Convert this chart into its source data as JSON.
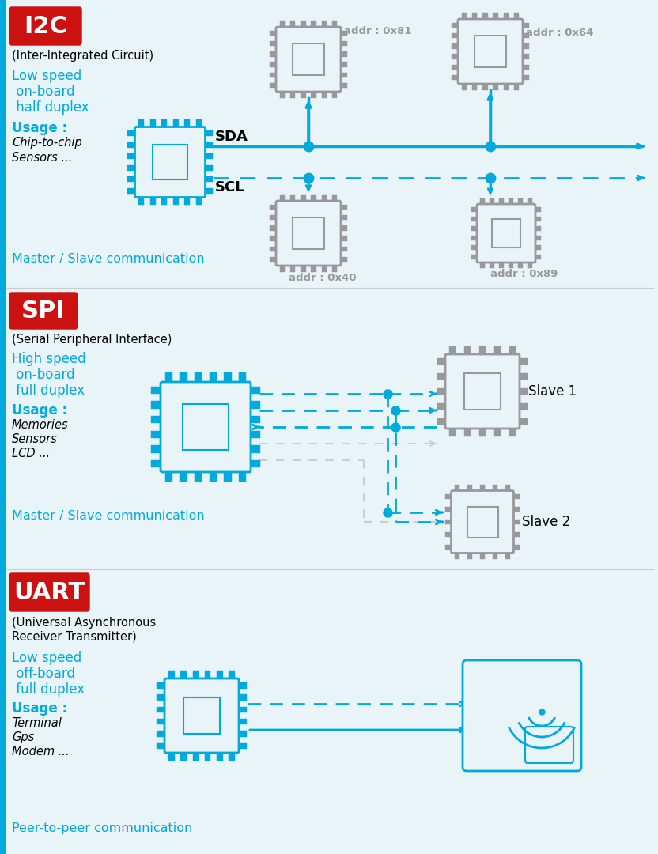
{
  "bg_color": "#e8f4f8",
  "cyan": "#00aadd",
  "red_bg": "#cc1111",
  "white": "#ffffff",
  "black": "#000000",
  "gray": "#999999",
  "dark_gray": "#555555",
  "light_gray": "#cccccc",
  "title_i2c": "I2C",
  "title_spi": "SPI",
  "title_uart": "UART",
  "i2c_desc": "(Inter-Integrated Circuit)",
  "i2c_line1": "Low speed",
  "i2c_line2": " on-board",
  "i2c_line3": " half duplex",
  "i2c_usage": "Usage :",
  "i2c_use1": "Chip-to-chip",
  "i2c_use2": "Sensors ...",
  "i2c_comm": "Master / Slave communication",
  "spi_desc": "(Serial Peripheral Interface)",
  "spi_line1": "High speed",
  "spi_line2": " on-board",
  "spi_line3": " full duplex",
  "spi_usage": "Usage :",
  "spi_use1": "Memories",
  "spi_use2": "Sensors",
  "spi_use3": "LCD ...",
  "spi_comm": "Master / Slave communication",
  "uart_desc1": "(Universal Asynchronous",
  "uart_desc2": "Receiver Transmitter)",
  "uart_line1": "Low speed",
  "uart_line2": " off-board",
  "uart_line3": " full duplex",
  "uart_usage": "Usage :",
  "uart_use1": "Terminal",
  "uart_use2": "Gps",
  "uart_use3": "Modem ...",
  "uart_comm": "Peer-to-peer communication"
}
